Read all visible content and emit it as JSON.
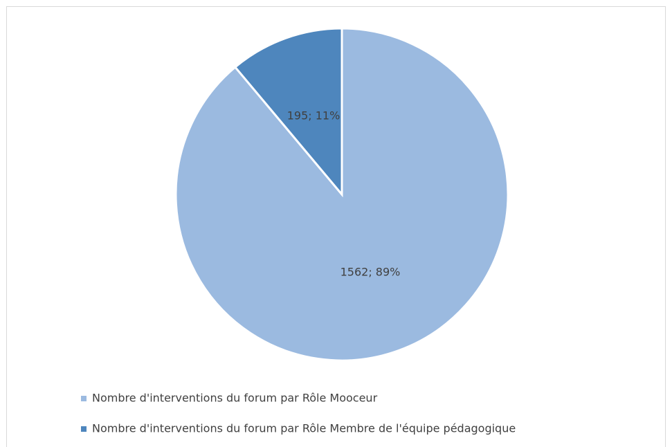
{
  "chart_data": {
    "type": "pie",
    "categories": [
      "Nombre d'interventions du forum par Rôle Mooceur",
      "Nombre d'interventions du forum par Rôle Membre de l'équipe pédagogique"
    ],
    "values": [
      1562,
      195
    ],
    "value_labels": [
      "1562; 89%",
      "195; 11%"
    ],
    "colors": [
      "#9bbae0",
      "#4e86bd"
    ],
    "legend": "bottom"
  }
}
